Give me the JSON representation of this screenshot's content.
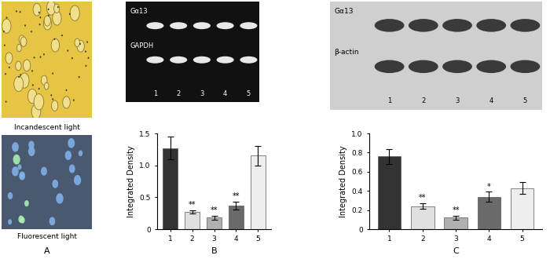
{
  "panel_a": {
    "label": "A",
    "images": [
      {
        "caption": "Incandescent light"
      },
      {
        "caption": "Fluorescent light"
      }
    ]
  },
  "gel": {
    "rows": [
      "Gα13",
      "GAPDH"
    ],
    "lanes": [
      "1",
      "2",
      "3",
      "4",
      "5"
    ]
  },
  "blot": {
    "rows": [
      "Gα13",
      "β-actin"
    ],
    "lanes": [
      "1",
      "2",
      "3",
      "4",
      "5"
    ]
  },
  "chart_data": [
    {
      "type": "bar",
      "title": "B",
      "ylabel": "Integrated Density",
      "categories": [
        "1",
        "2",
        "3",
        "4",
        "5"
      ],
      "values": [
        1.27,
        0.27,
        0.18,
        0.37,
        1.15
      ],
      "errors": [
        0.18,
        0.03,
        0.03,
        0.06,
        0.15
      ],
      "annotations": [
        null,
        "**",
        "**",
        "**",
        null
      ],
      "colors": [
        "#333333",
        "#e0e0e0",
        "#b0b0b0",
        "#6a6a6a",
        "#eeeeee"
      ],
      "ylim": [
        0,
        1.5
      ],
      "yticks": [
        0,
        0.5,
        {
          "value": 1,
          "label": "1.0"
        },
        1.5
      ]
    },
    {
      "type": "bar",
      "title": "C",
      "ylabel": "Integrated Density",
      "categories": [
        "1",
        "2",
        "3",
        "4",
        "5"
      ],
      "values": [
        0.76,
        0.24,
        0.12,
        0.34,
        0.43
      ],
      "errors": [
        0.08,
        0.03,
        0.02,
        0.05,
        0.06
      ],
      "annotations": [
        null,
        "**",
        "**",
        "*",
        null
      ],
      "colors": [
        "#333333",
        "#e0e0e0",
        "#b0b0b0",
        "#6a6a6a",
        "#eeeeee"
      ],
      "ylim": [
        0,
        1.0
      ],
      "yticks": [
        0,
        0.2,
        0.4,
        0.6,
        0.8,
        {
          "value": 1,
          "label": "1.0"
        }
      ]
    }
  ]
}
